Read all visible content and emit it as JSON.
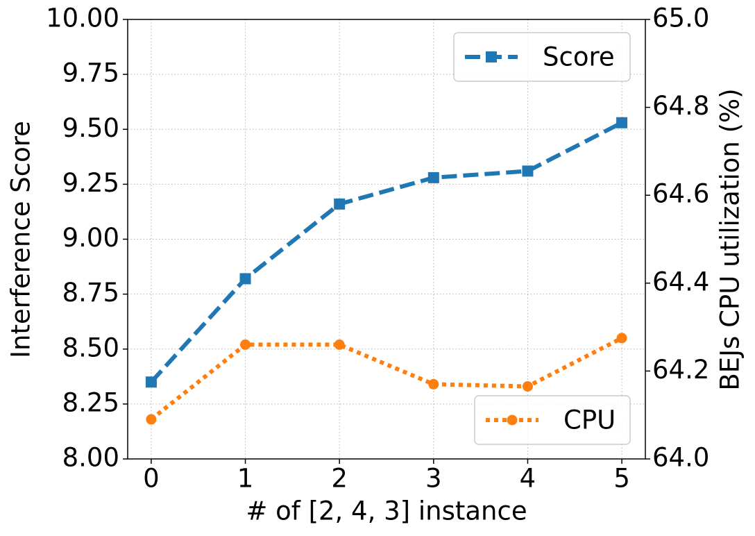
{
  "chart_data": {
    "type": "line",
    "x_label": "# of [2, 4, 3] instance",
    "y_label": "Interference Score",
    "y2_label": "BEJs CPU utilization (%)",
    "x": [
      0,
      1,
      2,
      3,
      4,
      5
    ],
    "xlim": [
      -0.25,
      5.25
    ],
    "xticks": [
      0,
      1,
      2,
      3,
      4,
      5
    ],
    "ylim": [
      8,
      10
    ],
    "yticks": [
      {
        "value": 8,
        "label": "8.00"
      },
      {
        "value": 8.25,
        "label": "8.25"
      },
      {
        "value": 8.5,
        "label": "8.50"
      },
      {
        "value": 8.75,
        "label": "8.75"
      },
      {
        "value": 9,
        "label": "9.00"
      },
      {
        "value": 9.25,
        "label": "9.25"
      },
      {
        "value": 9.5,
        "label": "9.50"
      },
      {
        "value": 9.75,
        "label": "9.75"
      },
      {
        "value": 10,
        "label": "10.00"
      }
    ],
    "y2lim": [
      64,
      65
    ],
    "y2ticks": [
      {
        "value": 64,
        "label": "64.0"
      },
      64.2,
      64.4,
      64.6,
      64.8,
      {
        "value": 65,
        "label": "65.0"
      }
    ],
    "grid": true,
    "series": [
      {
        "name": "Score",
        "color": "#1f77b4",
        "values": [
          8.35,
          8.82,
          9.16,
          9.28,
          9.31,
          9.53
        ],
        "dash": "dashed",
        "marker": "square",
        "legend": "upper right"
      },
      {
        "name": "CPU",
        "color": "#ff7f0e",
        "values": [
          64.09,
          64.26,
          64.26,
          64.17,
          64.165,
          64.275
        ],
        "axis": "y2",
        "dash": "dotted",
        "marker": "circle",
        "legend": "lower right"
      }
    ]
  }
}
